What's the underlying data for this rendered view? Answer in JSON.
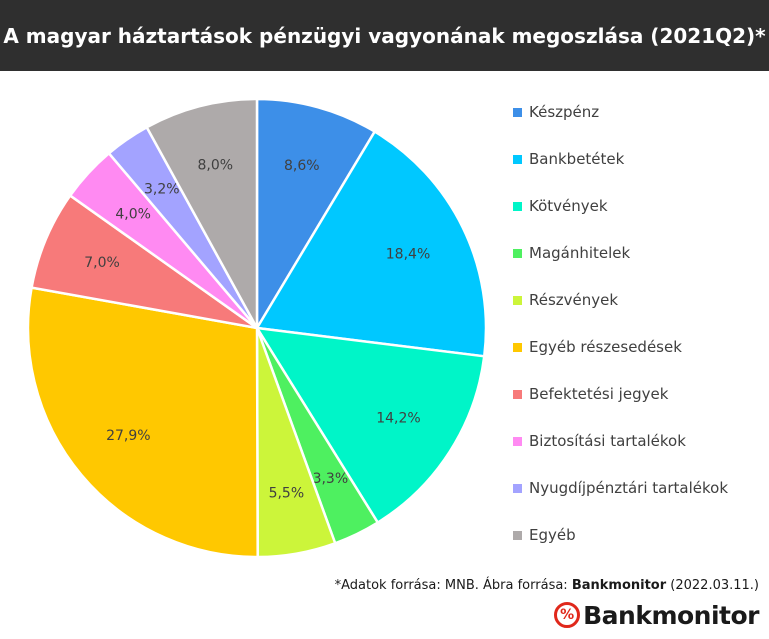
{
  "header": {
    "title": "A magyar háztartások pénzügyi vagyonának megoszlása (2021Q2)*"
  },
  "chart_data": {
    "type": "pie",
    "title": "A magyar háztartások pénzügyi vagyonának megoszlása (2021Q2)*",
    "unit": "%",
    "legend_position": "right",
    "slices": [
      {
        "name": "Készpénz",
        "value": 8.6,
        "label": "8,6%",
        "color": "#3d8fe8"
      },
      {
        "name": "Bankbetétek",
        "value": 18.4,
        "label": "18,4%",
        "color": "#00c8ff"
      },
      {
        "name": "Kötvények",
        "value": 14.2,
        "label": "14,2%",
        "color": "#00f5c8"
      },
      {
        "name": "Magánhitelek",
        "value": 3.3,
        "label": "3,3%",
        "color": "#4ef060"
      },
      {
        "name": "Részvények",
        "value": 5.5,
        "label": "5,5%",
        "color": "#ccf53a"
      },
      {
        "name": "Egyéb részesedések",
        "value": 27.9,
        "label": "27,9%",
        "color": "#ffc800"
      },
      {
        "name": "Befektetési jegyek",
        "value": 7.0,
        "label": "7,0%",
        "color": "#f77a7a"
      },
      {
        "name": "Biztosítási tartalékok",
        "value": 4.0,
        "label": "4,0%",
        "color": "#ff8af2"
      },
      {
        "name": "Nyugdíjpénztári tartalékok",
        "value": 3.2,
        "label": "3,2%",
        "color": "#a3a3ff"
      },
      {
        "name": "Egyéb",
        "value": 8.0,
        "label": "8,0%",
        "color": "#aeaaaa"
      }
    ]
  },
  "source": {
    "prefix": "*Adatok forrása: MNB. Ábra forrása: ",
    "brand": "Bankmonitor",
    "date": " (2022.03.11.)"
  },
  "logo": {
    "symbol": "%",
    "text": "Bankmonitor",
    "color": "#e0281b"
  }
}
